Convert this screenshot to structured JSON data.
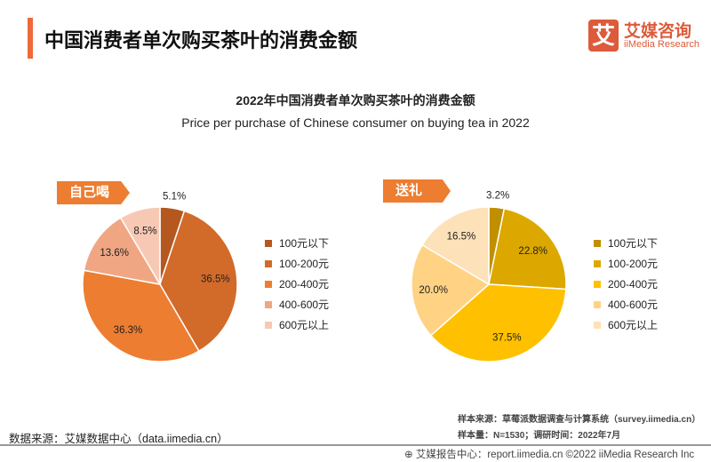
{
  "header": {
    "title": "中国消费者单次购买茶叶的消费金额",
    "logo_mark": "艾",
    "logo_cn": "艾媒咨询",
    "logo_en": "iiMedia Research"
  },
  "chart_data": [
    {
      "type": "pie",
      "title": "2022年中国消费者单次购买茶叶的消费金额",
      "subtitle": "Price per purchase of Chinese consumer on buying tea in 2022",
      "tag": "自己喝",
      "categories": [
        "100元以下",
        "100-200元",
        "200-400元",
        "400-600元",
        "600元以上"
      ],
      "values": [
        5.1,
        36.5,
        36.3,
        13.6,
        8.5
      ],
      "labels": [
        "5.1%",
        "36.5%",
        "36.3%",
        "13.6%",
        "8.5%"
      ],
      "colors": [
        "#b5581f",
        "#d26a2a",
        "#ed7d31",
        "#f0a683",
        "#f7c9b5"
      ],
      "legend": "right"
    },
    {
      "type": "pie",
      "tag": "送礼",
      "categories": [
        "100元以下",
        "100-200元",
        "200-400元",
        "400-600元",
        "600元以上"
      ],
      "values": [
        3.2,
        22.8,
        37.5,
        20.0,
        16.5
      ],
      "labels": [
        "3.2%",
        "22.8%",
        "37.5%",
        "20.0%",
        "16.5%"
      ],
      "colors": [
        "#bf8f00",
        "#dca800",
        "#ffc000",
        "#ffd383",
        "#fde1b8"
      ],
      "legend": "right"
    }
  ],
  "footer": {
    "source": "数据来源：艾媒数据中心（data.iimedia.cn）",
    "sample_source": "样本来源：草莓派数据调查与计算系统（survey.iimedia.cn）",
    "sample": "样本量：N=1530；调研时间：2022年7月",
    "copyright": "艾媒报告中心：report.iimedia.cn  ©2022  iiMedia Research  Inc"
  }
}
